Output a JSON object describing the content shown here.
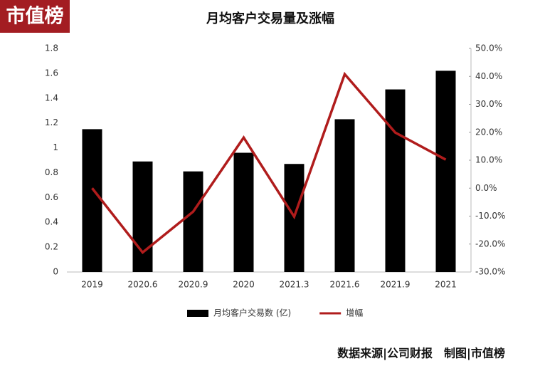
{
  "chart_data": {
    "type": "bar",
    "title": "月均客户交易量及涨幅",
    "logo": "市值榜",
    "source": "数据来源|公司财报　制图|市值榜",
    "categories": [
      "2019",
      "2020.6",
      "2020.9",
      "2020",
      "2021.3",
      "2021.6",
      "2021.9",
      "2021"
    ],
    "series": [
      {
        "name": "月均客户交易数 (亿)",
        "type": "bar",
        "color": "#000000",
        "values": [
          1.15,
          0.89,
          0.81,
          0.96,
          0.87,
          1.23,
          1.47,
          1.62
        ]
      },
      {
        "name": "增幅",
        "type": "line",
        "axis": "y2",
        "color": "#b01c1c",
        "values": [
          0,
          -23,
          -8.4,
          18.1,
          -10.2,
          40.8,
          19.9,
          10.2
        ]
      }
    ],
    "ylim": [
      0,
      1.8
    ],
    "yticks": [
      0,
      0.2,
      0.4,
      0.6,
      0.8,
      1,
      1.2,
      1.4,
      1.6,
      1.8
    ],
    "y2lim": [
      -30,
      50
    ],
    "y2ticks": [
      {
        "value": -30,
        "label": "-30.0%"
      },
      {
        "value": -20,
        "label": "-20.0%"
      },
      {
        "value": -10,
        "label": "-10.0%"
      },
      {
        "value": 0,
        "label": "0.0%"
      },
      {
        "value": 10,
        "label": "10.0%"
      },
      {
        "value": 20,
        "label": "20.0%"
      },
      {
        "value": 30,
        "label": "30.0%"
      },
      {
        "value": 40,
        "label": "40.0%"
      },
      {
        "value": 50,
        "label": "50.0%"
      }
    ],
    "grid": false,
    "legend": "bottom"
  }
}
